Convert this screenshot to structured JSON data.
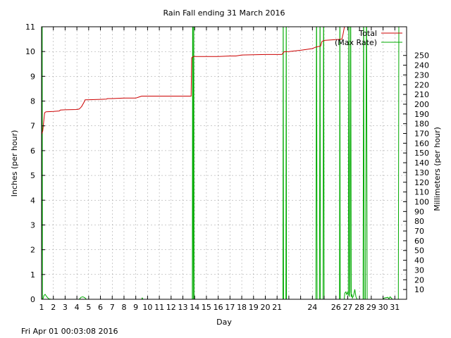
{
  "chart_data": {
    "type": "line",
    "title": "Rain Fall ending 31 March 2016",
    "xlabel": "Day",
    "ylabel": "Inches (per hour)",
    "y2label": "Millimeters (per hour)",
    "timestamp": "Fri Apr 01 00:03:08 2016",
    "xlim": [
      1,
      32
    ],
    "ylim": [
      0,
      11
    ],
    "y2lim": [
      0,
      279.4
    ],
    "x_ticks": [
      1,
      2,
      3,
      4,
      5,
      6,
      7,
      8,
      9,
      10,
      11,
      12,
      13,
      14,
      15,
      16,
      17,
      18,
      19,
      20,
      21,
      24,
      26,
      27,
      28,
      29,
      30,
      31
    ],
    "x_ticks_minor": [
      22,
      23,
      25
    ],
    "y_ticks": [
      0,
      1,
      2,
      3,
      4,
      5,
      6,
      7,
      8,
      9,
      10,
      11
    ],
    "y2_ticks": [
      10,
      20,
      30,
      40,
      50,
      60,
      70,
      80,
      90,
      100,
      110,
      120,
      130,
      140,
      150,
      160,
      170,
      180,
      190,
      200,
      210,
      220,
      230,
      240,
      250
    ],
    "grid": true,
    "legend_position": "top-right",
    "colors": {
      "total": "#cc0000",
      "max_rate": "#00aa00"
    },
    "series": [
      {
        "name": "Total",
        "x": [
          1.0,
          1.1,
          1.25,
          1.3,
          1.4,
          2.0,
          2.5,
          2.6,
          3.0,
          4.0,
          4.2,
          4.4,
          4.6,
          4.7,
          5.5,
          6.0,
          6.5,
          6.6,
          7.0,
          8.0,
          9.0,
          9.3,
          9.5,
          10.0,
          11.0,
          12.0,
          13.0,
          13.7,
          13.75,
          13.9,
          14.0,
          15.0,
          16.0,
          17.0,
          17.5,
          18.0,
          19.0,
          20.0,
          21.0,
          21.4,
          21.6,
          22.0,
          23.0,
          24.0,
          24.3,
          24.7,
          24.8,
          25.0,
          26.0,
          26.5,
          26.6,
          26.8,
          27.0,
          27.3,
          27.5,
          28.0,
          29.0,
          30.0,
          31.0,
          31.3,
          32.0
        ],
        "y": [
          6.65,
          6.8,
          7.5,
          7.55,
          7.57,
          7.58,
          7.6,
          7.64,
          7.65,
          7.66,
          7.68,
          7.78,
          7.95,
          8.05,
          8.06,
          8.07,
          8.08,
          8.1,
          8.1,
          8.12,
          8.12,
          8.17,
          8.2,
          8.2,
          8.2,
          8.2,
          8.2,
          8.2,
          9.75,
          9.8,
          9.8,
          9.8,
          9.8,
          9.82,
          9.82,
          9.86,
          9.87,
          9.88,
          9.88,
          9.88,
          9.99,
          10.0,
          10.05,
          10.12,
          10.18,
          10.22,
          10.4,
          10.45,
          10.48,
          10.5,
          10.7,
          11.2,
          11.5,
          11.6,
          11.6,
          11.6,
          11.6,
          11.6,
          11.6,
          11.6,
          11.6
        ]
      },
      {
        "name": "(Max Rate)",
        "x": [
          1.0,
          1.05,
          1.08,
          1.15,
          1.2,
          1.3,
          1.45,
          1.6,
          1.8,
          4.2,
          4.35,
          4.5,
          4.65,
          4.8,
          9.5,
          9.55,
          9.6,
          13.8,
          13.83,
          13.88,
          13.92,
          13.95,
          14.0,
          21.5,
          21.52,
          21.55,
          21.75,
          21.78,
          21.8,
          24.3,
          24.35,
          24.4,
          24.6,
          24.65,
          24.68,
          24.9,
          24.95,
          25.0,
          26.3,
          26.33,
          26.36,
          26.7,
          26.75,
          26.85,
          26.9,
          27.0,
          27.05,
          27.1,
          27.15,
          27.2,
          27.25,
          27.3,
          27.35,
          27.4,
          27.5,
          27.6,
          27.7,
          27.8,
          28.3,
          28.35,
          28.4,
          28.5,
          28.6,
          28.65,
          30.0,
          30.1,
          30.4,
          30.5,
          30.6,
          30.8,
          31.3,
          31.35,
          31.45,
          31.5,
          32.0
        ],
        "y": [
          0.0,
          13.0,
          0.0,
          0.05,
          0.15,
          0.2,
          0.1,
          0.02,
          0.0,
          0.0,
          0.08,
          0.1,
          0.07,
          0.0,
          0.0,
          0.05,
          0.0,
          0.0,
          13.0,
          0.0,
          13.0,
          0.0,
          0.0,
          0.0,
          13.0,
          0.0,
          0.0,
          13.0,
          0.0,
          0.0,
          13.0,
          0.0,
          0.0,
          13.0,
          0.0,
          0.0,
          13.0,
          0.0,
          0.0,
          13.0,
          0.0,
          0.0,
          0.25,
          0.3,
          0.2,
          0.28,
          0.15,
          13.0,
          0.1,
          0.3,
          13.0,
          0.1,
          0.2,
          0.05,
          0.15,
          0.4,
          0.1,
          0.0,
          0.0,
          13.0,
          0.0,
          0.0,
          13.0,
          0.0,
          0.0,
          0.05,
          0.08,
          0.02,
          0.1,
          0.0,
          0.0,
          13.0,
          13.0,
          13.0,
          13.0
        ]
      }
    ]
  }
}
